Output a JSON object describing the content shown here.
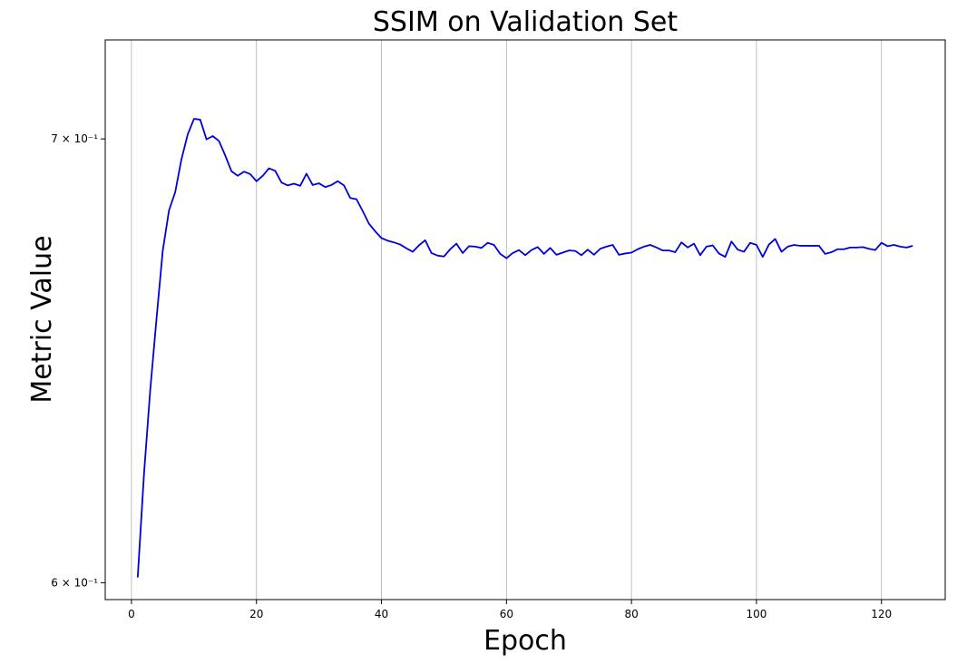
{
  "chart_data": {
    "type": "line",
    "title": "SSIM on Validation Set",
    "xlabel": "Epoch",
    "ylabel": "Metric Value",
    "yscale": "log",
    "xlim": [
      -4.2,
      130.2
    ],
    "ylim": [
      0.5965,
      0.7245
    ],
    "grid": "vertical",
    "xticks": [
      0,
      20,
      40,
      60,
      80,
      100,
      120
    ],
    "yticks": [
      {
        "value": 0.7,
        "label": "7 × 10⁻¹"
      },
      {
        "value": 0.6,
        "label": "6 × 10⁻¹"
      }
    ],
    "series": [
      {
        "color": "#0000dd",
        "x": [
          1,
          2,
          3,
          4,
          5,
          6,
          7,
          8,
          9,
          10,
          11,
          12,
          13,
          14,
          15,
          16,
          17,
          18,
          19,
          20,
          21,
          22,
          23,
          24,
          25,
          26,
          27,
          28,
          29,
          30,
          31,
          32,
          33,
          34,
          35,
          36,
          37,
          38,
          39,
          40,
          41,
          42,
          43,
          44,
          45,
          46,
          47,
          48,
          49,
          50,
          51,
          52,
          53,
          54,
          55,
          56,
          57,
          58,
          59,
          60,
          61,
          62,
          63,
          64,
          65,
          66,
          67,
          68,
          69,
          70,
          71,
          72,
          73,
          74,
          75,
          76,
          77,
          78,
          79,
          80,
          81,
          82,
          83,
          84,
          85,
          86,
          87,
          88,
          89,
          90,
          91,
          92,
          93,
          94,
          95,
          96,
          97,
          98,
          99,
          100,
          101,
          102,
          103,
          104,
          105,
          106,
          107,
          108,
          109,
          110,
          111,
          112,
          113,
          114,
          115,
          116,
          117,
          118,
          119,
          120,
          121,
          122,
          123,
          124,
          125
        ],
        "values": [
          0.6011,
          0.623,
          0.6415,
          0.6575,
          0.6733,
          0.6828,
          0.6872,
          0.6951,
          0.7011,
          0.7049,
          0.7047,
          0.6999,
          0.7007,
          0.6995,
          0.696,
          0.6922,
          0.6911,
          0.6921,
          0.6915,
          0.6898,
          0.6911,
          0.6929,
          0.6923,
          0.6895,
          0.6888,
          0.6892,
          0.6887,
          0.6916,
          0.6889,
          0.6893,
          0.6884,
          0.6889,
          0.6898,
          0.6888,
          0.6858,
          0.6855,
          0.6827,
          0.6797,
          0.6779,
          0.6763,
          0.6757,
          0.6753,
          0.6748,
          0.6739,
          0.6731,
          0.6746,
          0.6758,
          0.6728,
          0.6722,
          0.672,
          0.6737,
          0.675,
          0.6728,
          0.6744,
          0.6743,
          0.674,
          0.6752,
          0.6747,
          0.6726,
          0.6716,
          0.6728,
          0.6735,
          0.6723,
          0.6735,
          0.6742,
          0.6726,
          0.674,
          0.6724,
          0.6729,
          0.6734,
          0.6733,
          0.6723,
          0.6736,
          0.6724,
          0.6738,
          0.6743,
          0.6747,
          0.6724,
          0.6727,
          0.6729,
          0.6737,
          0.6743,
          0.6747,
          0.6741,
          0.6734,
          0.6734,
          0.673,
          0.6753,
          0.6741,
          0.675,
          0.6723,
          0.6743,
          0.6746,
          0.6727,
          0.6719,
          0.6755,
          0.6736,
          0.6731,
          0.6752,
          0.6747,
          0.6719,
          0.6748,
          0.6761,
          0.6731,
          0.6743,
          0.6747,
          0.6745,
          0.6745,
          0.6745,
          0.6745,
          0.6726,
          0.673,
          0.6737,
          0.6737,
          0.6741,
          0.6741,
          0.6742,
          0.6738,
          0.6735,
          0.6752,
          0.6744,
          0.6747,
          0.6743,
          0.6741,
          0.6745
        ]
      }
    ]
  }
}
